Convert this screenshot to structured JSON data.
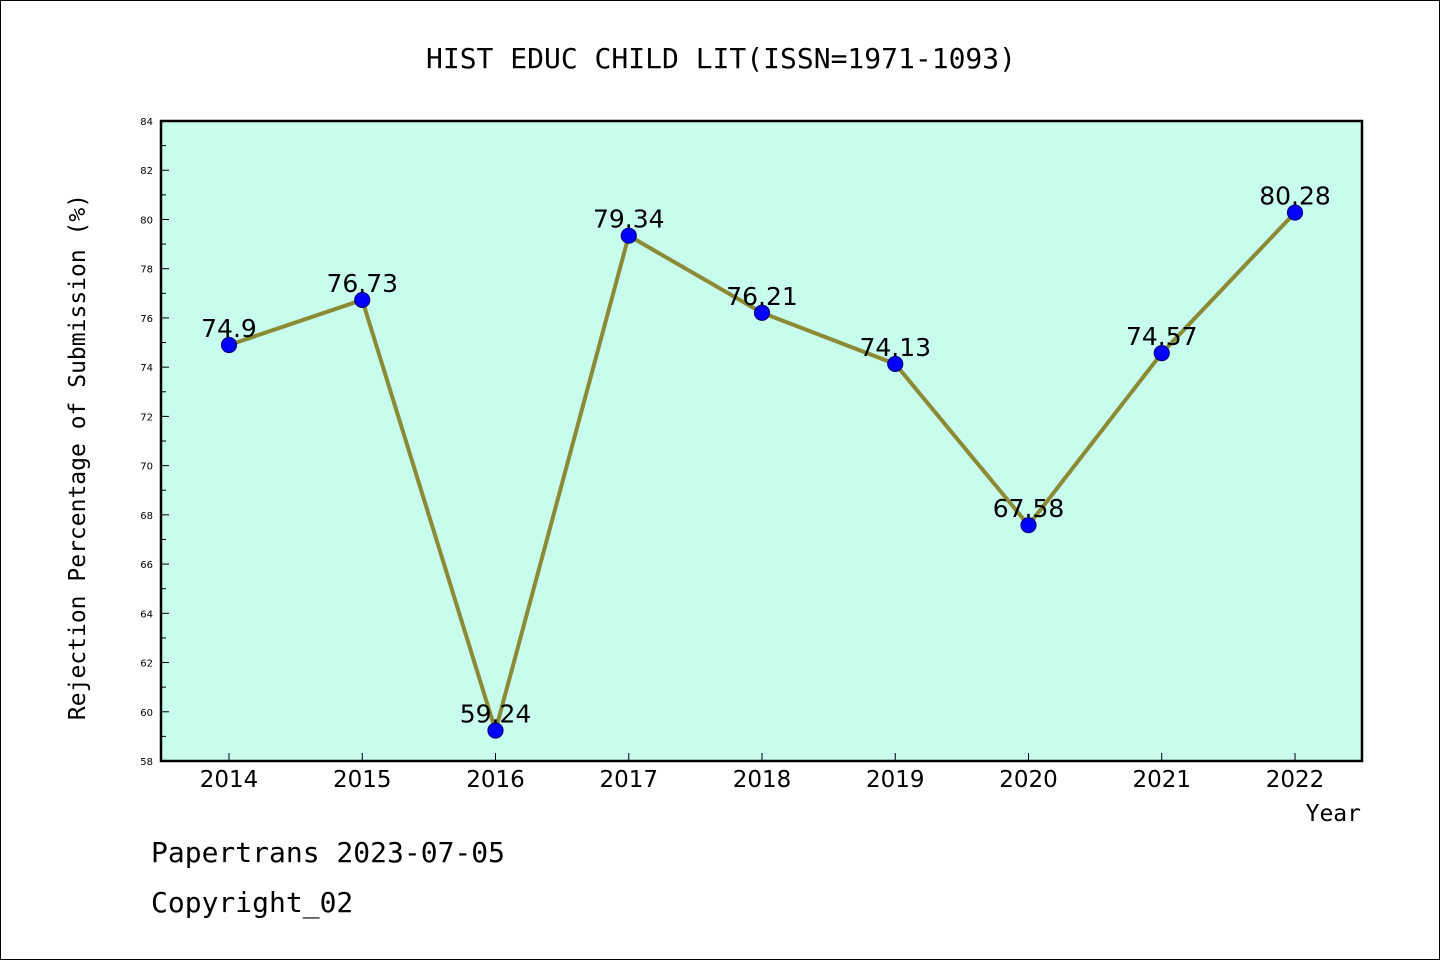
{
  "chart_data": {
    "type": "line",
    "title": "HIST EDUC CHILD LIT(ISSN=1971-1093)",
    "xlabel": "Year",
    "ylabel": "Rejection Percentage of Submission (%)",
    "categories": [
      "2014",
      "2015",
      "2016",
      "2017",
      "2018",
      "2019",
      "2020",
      "2021",
      "2022"
    ],
    "values": [
      74.9,
      76.73,
      59.24,
      79.34,
      76.21,
      74.13,
      67.58,
      74.57,
      80.28
    ],
    "data_labels": [
      "74.9",
      "76.73",
      "59.24",
      "79.34",
      "76.21",
      "74.13",
      "67.58",
      "74.57",
      "80.28"
    ],
    "ylim": [
      58,
      84
    ],
    "yticks": [
      58,
      60,
      62,
      64,
      66,
      68,
      70,
      72,
      74,
      76,
      78,
      80,
      82,
      84
    ],
    "grid": false,
    "colors": {
      "plot_background": "#c8fcec",
      "line": "#8b8a35",
      "marker": "#0000ff",
      "marker_edge": "#000080"
    }
  },
  "footer": {
    "line1": "Papertrans 2023-07-05",
    "line2": "Copyright_02"
  }
}
